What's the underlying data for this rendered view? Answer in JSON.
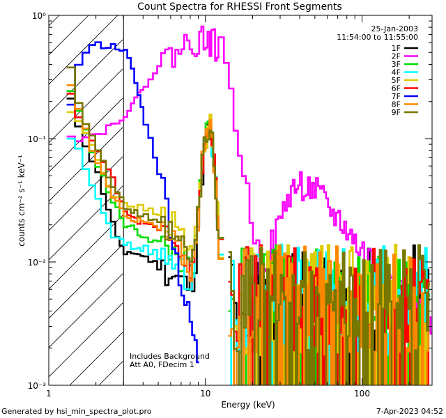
{
  "chart_data": {
    "type": "line",
    "title": "Count Spectra for RHESSI Front Segments",
    "date": "25-Jan-2003",
    "time_range": "11:54:00 to 11:55:00",
    "xlabel": "Energy (keV)",
    "ylabel": "counts cm⁻² s⁻¹ keV⁻¹",
    "xscale": "log",
    "yscale": "log",
    "xlim": [
      1,
      280
    ],
    "ylim": [
      0.001,
      1
    ],
    "x_ticks": [
      {
        "v": 1,
        "t": "1"
      },
      {
        "v": 10,
        "t": "10"
      },
      {
        "v": 100,
        "t": "100"
      }
    ],
    "y_ticks": [
      {
        "v": 0.001,
        "t": "10⁻³"
      },
      {
        "v": 0.01,
        "t": "10⁻²"
      },
      {
        "v": 0.1,
        "t": "10⁻¹"
      },
      {
        "v": 1,
        "t": "10⁰"
      }
    ],
    "shaded_region_keV": [
      1,
      3
    ],
    "annotations": [
      "Includes Background",
      "Att A0, FDecim 1"
    ],
    "footer_left": "Generated by hsi_min_spectra_plot.pro",
    "footer_right": "7-Apr-2023 04:52",
    "series": [
      {
        "name": "1F",
        "color": "#000000",
        "seed": 11,
        "x": [
          1.3,
          1.5,
          2.0,
          2.5,
          3.0,
          3.5,
          4.0,
          4.5,
          5.0,
          6.0,
          7.0,
          8.0,
          8.5,
          9.0,
          9.5,
          10.0,
          10.5,
          11.0,
          11.5,
          12.0,
          12.5,
          13.0
        ],
        "y": [
          0.2,
          0.12,
          0.05,
          0.02,
          0.011,
          0.012,
          0.011,
          0.01,
          0.009,
          0.008,
          0.007,
          0.006,
          0.01,
          0.03,
          0.06,
          0.1,
          0.12,
          0.08,
          0.04,
          0.015,
          0.006,
          0.003
        ]
      },
      {
        "name": "2F",
        "color": "#ff00ff",
        "seed": 22,
        "x": [
          1.3,
          1.5,
          2.0,
          2.5,
          3.0,
          3.5,
          4.0,
          5.0,
          6.0,
          7.0,
          8.0,
          9.0,
          10.0,
          11.0,
          12.0,
          13.0,
          14.0,
          15.0,
          16.0,
          17.0,
          18.0,
          20.0,
          22.0,
          24.0,
          26.0,
          28.0,
          30.0,
          32.0,
          35.0,
          40.0,
          45.0,
          50.0,
          55.0,
          60.0,
          70.0,
          80.0,
          90.0,
          100.0,
          120.0,
          140.0,
          160.0,
          180.0,
          200.0,
          220.0,
          240.0,
          260.0,
          280.0
        ],
        "y": [
          0.11,
          0.1,
          0.11,
          0.13,
          0.16,
          0.2,
          0.28,
          0.4,
          0.48,
          0.55,
          0.6,
          0.63,
          0.64,
          0.6,
          0.52,
          0.4,
          0.26,
          0.15,
          0.09,
          0.055,
          0.035,
          0.018,
          0.01,
          0.011,
          0.014,
          0.017,
          0.022,
          0.03,
          0.038,
          0.042,
          0.04,
          0.037,
          0.032,
          0.027,
          0.022,
          0.018,
          0.014,
          0.012,
          0.01,
          0.0075,
          0.0065,
          0.0055,
          0.005,
          0.0045,
          0.0035,
          0.0028,
          0.0024
        ]
      },
      {
        "name": "3F",
        "color": "#00dd00",
        "seed": 33,
        "x": [
          1.3,
          1.5,
          2.0,
          2.5,
          3.0,
          3.5,
          4.0,
          4.5,
          5.0,
          6.0,
          7.0,
          8.0,
          8.5,
          9.0,
          9.5,
          10.0,
          10.5,
          11.0,
          11.5,
          12.0,
          12.5,
          13.0
        ],
        "y": [
          0.25,
          0.15,
          0.06,
          0.03,
          0.02,
          0.018,
          0.016,
          0.015,
          0.014,
          0.012,
          0.01,
          0.008,
          0.012,
          0.035,
          0.07,
          0.11,
          0.13,
          0.09,
          0.045,
          0.018,
          0.007,
          0.004
        ]
      },
      {
        "name": "4F",
        "color": "#00ffff",
        "seed": 44,
        "x": [
          1.3,
          1.5,
          2.0,
          2.5,
          3.0,
          3.5,
          4.0,
          4.5,
          5.0,
          6.0,
          7.0,
          8.0,
          8.5,
          9.0,
          9.5,
          10.0,
          10.5,
          11.0,
          11.5,
          12.0,
          12.5,
          13.0
        ],
        "y": [
          0.1,
          0.08,
          0.03,
          0.016,
          0.014,
          0.013,
          0.013,
          0.012,
          0.011,
          0.01,
          0.008,
          0.007,
          0.011,
          0.03,
          0.06,
          0.1,
          0.12,
          0.08,
          0.04,
          0.016,
          0.006,
          0.003
        ]
      },
      {
        "name": "5F",
        "color": "#ddcc00",
        "seed": 55,
        "x": [
          1.3,
          1.5,
          2.0,
          2.5,
          3.0,
          3.5,
          4.0,
          4.5,
          5.0,
          6.0,
          7.0,
          8.0,
          8.5,
          9.0,
          9.5,
          10.0,
          10.5,
          11.0,
          11.5,
          12.0,
          12.5,
          13.0
        ],
        "y": [
          0.16,
          0.14,
          0.065,
          0.035,
          0.03,
          0.028,
          0.027,
          0.025,
          0.024,
          0.02,
          0.016,
          0.012,
          0.015,
          0.038,
          0.07,
          0.11,
          0.13,
          0.09,
          0.045,
          0.018,
          0.007,
          0.004
        ]
      },
      {
        "name": "6F",
        "color": "#ff0000",
        "seed": 66,
        "x": [
          1.3,
          1.5,
          2.0,
          2.5,
          3.0,
          3.5,
          4.0,
          4.5,
          5.0,
          6.0,
          7.0,
          8.0,
          8.5,
          9.0,
          9.5,
          10.0,
          10.5,
          11.0,
          11.5,
          12.0,
          12.5,
          13.0
        ],
        "y": [
          0.22,
          0.15,
          0.08,
          0.045,
          0.025,
          0.022,
          0.02,
          0.019,
          0.017,
          0.014,
          0.011,
          0.009,
          0.012,
          0.034,
          0.065,
          0.1,
          0.12,
          0.085,
          0.042,
          0.017,
          0.007,
          0.004
        ]
      },
      {
        "name": "7F",
        "color": "#0000ff",
        "seed": 77,
        "x": [
          1.3,
          1.4,
          1.5,
          1.6,
          1.8,
          2.0,
          2.2,
          2.5,
          2.8,
          3.0,
          3.2,
          3.4,
          3.6,
          3.8,
          4.0,
          4.3,
          4.6,
          5.0,
          5.5,
          6.0,
          6.5,
          7.0,
          7.5,
          8.0,
          8.5,
          9.0
        ],
        "y": [
          0.2,
          0.3,
          0.42,
          0.5,
          0.56,
          0.57,
          0.57,
          0.56,
          0.55,
          0.5,
          0.42,
          0.33,
          0.25,
          0.19,
          0.14,
          0.1,
          0.075,
          0.05,
          0.03,
          0.017,
          0.01,
          0.006,
          0.004,
          0.003,
          0.002,
          0.0015
        ]
      },
      {
        "name": "8F",
        "color": "#ff8800",
        "seed": 88,
        "x": [
          1.3,
          1.5,
          2.0,
          2.5,
          3.0,
          3.5,
          4.0,
          4.5,
          5.0,
          6.0,
          7.0,
          8.0,
          8.5,
          9.0,
          9.5,
          10.0,
          10.5,
          11.0,
          11.5,
          12.0,
          12.5,
          13.0
        ],
        "y": [
          0.28,
          0.16,
          0.06,
          0.032,
          0.025,
          0.022,
          0.021,
          0.02,
          0.018,
          0.015,
          0.012,
          0.009,
          0.012,
          0.034,
          0.066,
          0.1,
          0.12,
          0.085,
          0.042,
          0.017,
          0.007,
          0.004
        ]
      },
      {
        "name": "9F",
        "color": "#777700",
        "seed": 99,
        "x": [
          1.3,
          1.5,
          2.0,
          2.5,
          3.0,
          3.5,
          4.0,
          4.5,
          5.0,
          6.0,
          7.0,
          8.0,
          8.5,
          9.0,
          9.5,
          10.0,
          10.5,
          11.0,
          11.5,
          12.0,
          12.5,
          13.0
        ],
        "y": [
          0.38,
          0.18,
          0.08,
          0.04,
          0.028,
          0.025,
          0.023,
          0.021,
          0.02,
          0.016,
          0.013,
          0.01,
          0.013,
          0.036,
          0.068,
          0.1,
          0.12,
          0.085,
          0.042,
          0.017,
          0.007,
          0.004
        ]
      }
    ]
  }
}
